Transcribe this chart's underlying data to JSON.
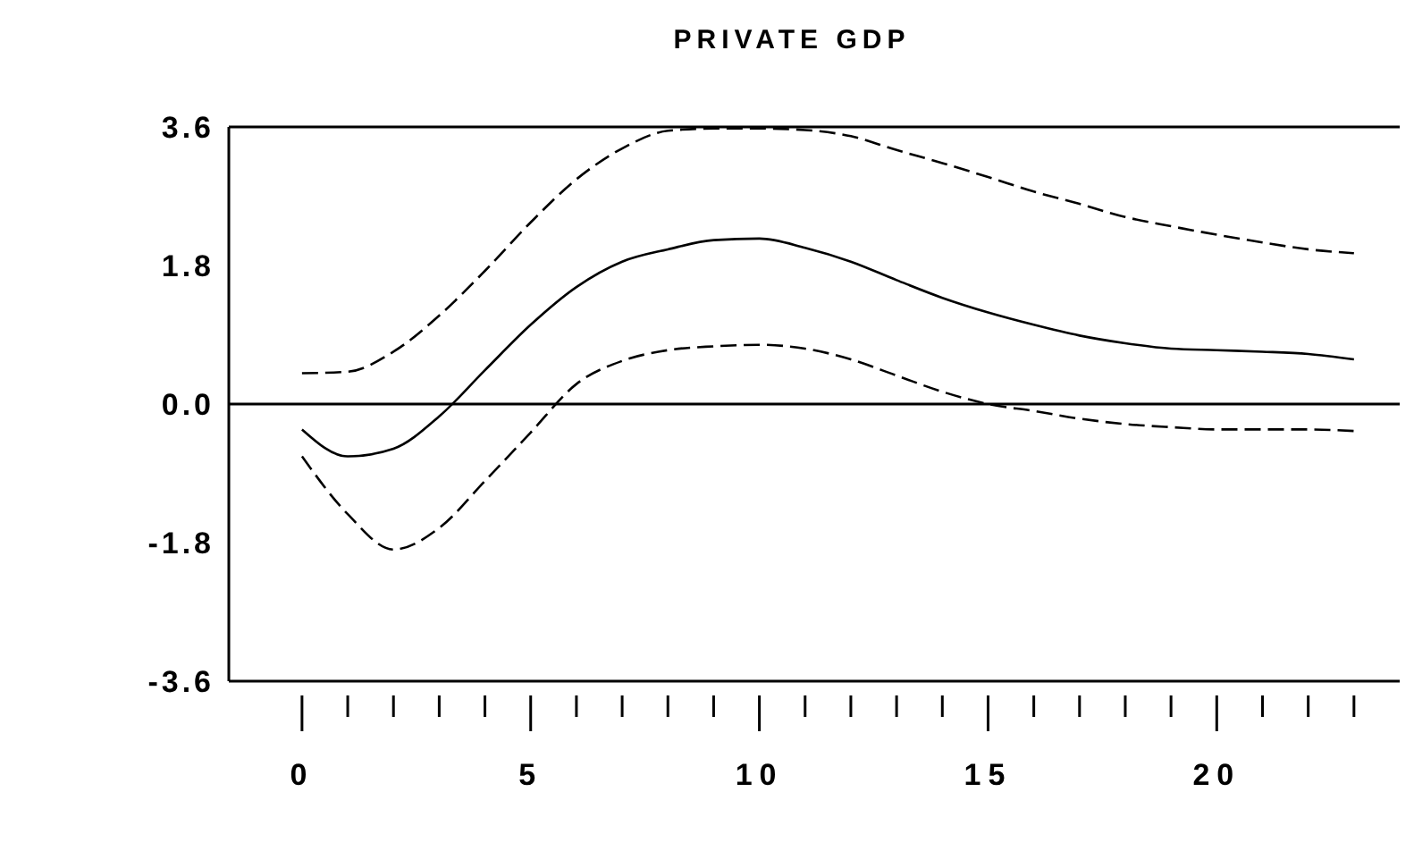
{
  "chart_data": {
    "type": "line",
    "title": "PRIVATE GDP",
    "x": [
      0,
      1,
      2,
      3,
      4,
      5,
      6,
      7,
      8,
      9,
      10,
      11,
      12,
      13,
      14,
      15,
      16,
      17,
      18,
      19,
      20,
      21,
      22,
      23
    ],
    "series": [
      {
        "color": "#000000",
        "line_style": "solid",
        "values": [
          -0.33,
          -0.68,
          -0.58,
          -0.16,
          0.44,
          1.03,
          1.52,
          1.85,
          2.01,
          2.13,
          2.15,
          2.03,
          1.85,
          1.61,
          1.38,
          1.19,
          1.03,
          0.89,
          0.79,
          0.72,
          0.7,
          0.68,
          0.65,
          0.58
        ]
      },
      {
        "color": "#000000",
        "line_style": "dashed",
        "values": [
          0.4,
          0.42,
          0.68,
          1.15,
          1.73,
          2.36,
          2.92,
          3.32,
          3.55,
          3.58,
          3.58,
          3.56,
          3.48,
          3.3,
          3.13,
          2.95,
          2.76,
          2.6,
          2.43,
          2.31,
          2.2,
          2.1,
          2.01,
          1.96
        ]
      },
      {
        "color": "#000000",
        "line_style": "dashed",
        "values": [
          -0.68,
          -1.43,
          -1.89,
          -1.61,
          -1.0,
          -0.37,
          0.26,
          0.56,
          0.7,
          0.75,
          0.77,
          0.72,
          0.58,
          0.37,
          0.16,
          0.0,
          -0.09,
          -0.19,
          -0.26,
          -0.3,
          -0.33,
          -0.33,
          -0.33,
          -0.35
        ]
      }
    ],
    "xlim": [
      -1.6,
      24
    ],
    "xticks": [
      0,
      {
        "value": 1,
        "label": null
      },
      {
        "value": 2,
        "label": null
      },
      {
        "value": 3,
        "label": null
      },
      {
        "value": 4,
        "label": null
      },
      5,
      {
        "value": 6,
        "label": null
      },
      {
        "value": 7,
        "label": null
      },
      {
        "value": 8,
        "label": null
      },
      {
        "value": 9,
        "label": null
      },
      10,
      {
        "value": 11,
        "label": null
      },
      {
        "value": 12,
        "label": null
      },
      {
        "value": 13,
        "label": null
      },
      {
        "value": 14,
        "label": null
      },
      15,
      {
        "value": 16,
        "label": null
      },
      {
        "value": 17,
        "label": null
      },
      {
        "value": 18,
        "label": null
      },
      {
        "value": 19,
        "label": null
      },
      20,
      {
        "value": 21,
        "label": null
      },
      {
        "value": 22,
        "label": null
      },
      {
        "value": 23,
        "label": null
      }
    ],
    "ylim": [
      -3.6,
      3.6
    ],
    "yticks": [
      {
        "value": -3.6,
        "label": "-3.6"
      },
      {
        "value": -1.8,
        "label": "-1.8"
      },
      {
        "value": 0,
        "label": "0.0"
      },
      {
        "value": 1.8,
        "label": "1.8"
      },
      {
        "value": 3.6,
        "label": "3.6"
      }
    ],
    "ref_lines": [
      {
        "axis": "y",
        "value": 0,
        "color": "#000000"
      }
    ],
    "marker": "none"
  }
}
